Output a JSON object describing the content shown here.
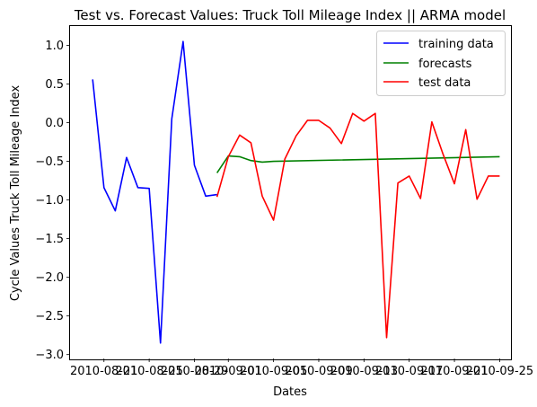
{
  "chart_data": {
    "type": "line",
    "title": "Test vs. Forecast Values: Truck Toll Mileage Index || ARMA model",
    "xlabel": "Dates",
    "ylabel": "Cycle Values Truck Toll Mileage Index",
    "xlim": [
      "2010-08-18",
      "2010-09-26"
    ],
    "ylim": [
      -3.05,
      1.25
    ],
    "grid": false,
    "legend_position": "top-right",
    "x_tick_labels": [
      "2010-08-21",
      "2010-08-25",
      "2010-08-29",
      "2010-09-01",
      "2010-09-05",
      "2010-09-09",
      "2010-09-13",
      "2010-09-17",
      "2010-09-21",
      "2010-09-25"
    ],
    "y_tick_labels": [
      "1.0",
      "0.5",
      "0.0",
      "−0.5",
      "−1.0",
      "−1.5",
      "−2.0",
      "−2.5",
      "−3.0"
    ],
    "y_ticks": [
      1.0,
      0.5,
      0.0,
      -0.5,
      -1.0,
      -1.5,
      -2.0,
      -2.5,
      -3.0
    ],
    "series": [
      {
        "name": "training data",
        "color": "#0000ff",
        "x": [
          "2010-08-20",
          "2010-08-21",
          "2010-08-22",
          "2010-08-23",
          "2010-08-24",
          "2010-08-25",
          "2010-08-26",
          "2010-08-27",
          "2010-08-28",
          "2010-08-29",
          "2010-08-30",
          "2010-08-31"
        ],
        "y": [
          0.56,
          -0.84,
          -1.14,
          -0.45,
          -0.84,
          -0.85,
          -2.85,
          0.05,
          1.05,
          -0.55,
          -0.95,
          -0.93
        ]
      },
      {
        "name": "forecasts",
        "color": "#008000",
        "x": [
          "2010-08-31",
          "2010-09-01",
          "2010-09-02",
          "2010-09-03",
          "2010-09-04",
          "2010-09-05",
          "2010-09-25"
        ],
        "y": [
          -0.65,
          -0.43,
          -0.44,
          -0.49,
          -0.51,
          -0.5,
          -0.44
        ]
      },
      {
        "name": "test data",
        "color": "#ff0000",
        "x": [
          "2010-08-31",
          "2010-09-01",
          "2010-09-02",
          "2010-09-03",
          "2010-09-04",
          "2010-09-05",
          "2010-09-06",
          "2010-09-07",
          "2010-09-08",
          "2010-09-09",
          "2010-09-10",
          "2010-09-11",
          "2010-09-12",
          "2010-09-13",
          "2010-09-14",
          "2010-09-15",
          "2010-09-16",
          "2010-09-17",
          "2010-09-18",
          "2010-09-19",
          "2010-09-20",
          "2010-09-21",
          "2010-09-22",
          "2010-09-23",
          "2010-09-24",
          "2010-09-25"
        ],
        "y": [
          -0.96,
          -0.44,
          -0.16,
          -0.26,
          -0.95,
          -1.26,
          -0.47,
          -0.17,
          0.03,
          0.03,
          -0.07,
          -0.27,
          0.12,
          0.02,
          0.12,
          -2.78,
          -0.78,
          -0.69,
          -0.98,
          0.01,
          -0.41,
          -0.79,
          -0.09,
          -0.99,
          -0.69,
          -0.69
        ]
      }
    ]
  }
}
